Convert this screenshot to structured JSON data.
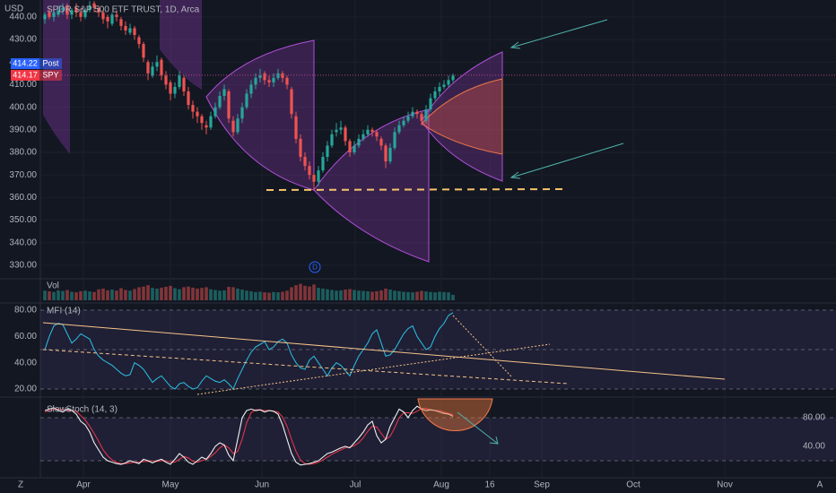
{
  "chart_data": {
    "type": "candlestick",
    "title": "SPDR S&P 500 ETF TRUST, 1D, Arca",
    "currency": "USD",
    "up_color": "#26a69a",
    "down_color": "#ef5350",
    "xlim": [
      -10,
      166
    ],
    "xticks": [
      {
        "value": 8.6,
        "label": "Apr"
      },
      {
        "value": 28,
        "label": "May"
      },
      {
        "value": 48.4,
        "label": "Jun"
      },
      {
        "value": 69.2,
        "label": "Jul"
      },
      {
        "value": 88.4,
        "label": "Aug"
      },
      {
        "value": 99.2,
        "label": "16"
      },
      {
        "value": 110.8,
        "label": "Sep"
      },
      {
        "value": 131.2,
        "label": "Oct"
      },
      {
        "value": 151.6,
        "label": "Nov"
      }
    ],
    "ylim": [
      324.4,
      447.5
    ],
    "yticks": [
      {
        "value": 440,
        "label": "440.00"
      },
      {
        "value": 430,
        "label": "430.00"
      },
      {
        "value": 420,
        "label": "420.00"
      },
      {
        "value": 410,
        "label": "410.00"
      },
      {
        "value": 400,
        "label": "400.00"
      },
      {
        "value": 390,
        "label": "390.00"
      },
      {
        "value": 380,
        "label": "380.00"
      },
      {
        "value": 370,
        "label": "370.00"
      },
      {
        "value": 360,
        "label": "360.00"
      },
      {
        "value": 350,
        "label": "350.00"
      },
      {
        "value": 340,
        "label": "340.00"
      },
      {
        "value": 330,
        "label": "330.00"
      }
    ],
    "candles": [
      [
        439,
        442,
        437,
        441
      ],
      [
        442,
        444,
        439,
        440
      ],
      [
        440,
        443,
        438,
        442
      ],
      [
        441,
        445,
        440,
        443
      ],
      [
        443,
        446,
        441,
        444
      ],
      [
        445,
        446,
        439,
        441
      ],
      [
        441,
        444,
        439,
        443
      ],
      [
        444,
        446,
        440,
        442
      ],
      [
        442,
        444,
        438,
        440
      ],
      [
        440,
        444,
        439,
        443
      ],
      [
        443,
        447,
        442,
        445
      ],
      [
        446,
        447,
        442,
        444
      ],
      [
        444,
        445,
        440,
        442
      ],
      [
        442,
        443,
        437,
        439
      ],
      [
        440,
        441,
        435,
        438
      ],
      [
        437,
        442,
        436,
        441
      ],
      [
        441,
        443,
        438,
        440
      ],
      [
        439,
        440,
        434,
        436
      ],
      [
        436,
        438,
        432,
        434
      ],
      [
        433,
        437,
        432,
        435
      ],
      [
        435,
        436,
        430,
        432
      ],
      [
        431,
        432,
        426,
        428
      ],
      [
        428,
        429,
        420,
        422
      ],
      [
        420,
        421,
        412,
        415
      ],
      [
        414,
        420,
        413,
        418
      ],
      [
        418,
        423,
        416,
        420
      ],
      [
        421,
        422,
        412,
        414
      ],
      [
        414,
        416,
        408,
        410
      ],
      [
        411,
        412,
        403,
        406
      ],
      [
        406,
        411,
        404,
        409
      ],
      [
        409,
        416,
        408,
        414
      ],
      [
        413,
        414,
        405,
        407
      ],
      [
        407,
        409,
        399,
        401
      ],
      [
        401,
        403,
        395,
        398
      ],
      [
        398,
        400,
        393,
        396
      ],
      [
        396,
        397,
        390,
        393
      ],
      [
        392,
        394,
        388,
        391
      ],
      [
        391,
        398,
        390,
        396
      ],
      [
        396,
        402,
        395,
        400
      ],
      [
        400,
        407,
        399,
        405
      ],
      [
        405,
        410,
        403,
        408
      ],
      [
        407,
        408,
        393,
        395
      ],
      [
        394,
        396,
        387,
        389
      ],
      [
        389,
        397,
        388,
        395
      ],
      [
        395,
        402,
        393,
        400
      ],
      [
        400,
        408,
        399,
        406
      ],
      [
        406,
        412,
        404,
        410
      ],
      [
        410,
        415,
        408,
        413
      ],
      [
        413,
        417,
        411,
        414
      ],
      [
        415,
        416,
        410,
        412
      ],
      [
        412,
        414,
        409,
        411
      ],
      [
        411,
        415,
        409,
        413
      ],
      [
        413,
        417,
        412,
        415
      ],
      [
        415,
        416,
        411,
        413
      ],
      [
        413,
        414,
        408,
        410
      ],
      [
        408,
        409,
        395,
        397
      ],
      [
        396,
        398,
        384,
        386
      ],
      [
        386,
        388,
        376,
        378
      ],
      [
        378,
        380,
        372,
        374
      ],
      [
        374,
        376,
        368,
        370
      ],
      [
        370,
        371,
        363,
        367
      ],
      [
        367,
        374,
        365,
        372
      ],
      [
        372,
        380,
        371,
        378
      ],
      [
        378,
        385,
        376,
        383
      ],
      [
        383,
        390,
        382,
        388
      ],
      [
        389,
        393,
        387,
        390
      ],
      [
        390,
        394,
        388,
        391
      ],
      [
        391,
        392,
        383,
        385
      ],
      [
        385,
        386,
        378,
        380
      ],
      [
        380,
        385,
        379,
        383
      ],
      [
        383,
        388,
        382,
        386
      ],
      [
        386,
        390,
        385,
        388
      ],
      [
        388,
        392,
        387,
        390
      ],
      [
        390,
        391,
        387,
        389
      ],
      [
        389,
        390,
        385,
        387
      ],
      [
        386,
        387,
        381,
        383
      ],
      [
        383,
        384,
        373,
        376
      ],
      [
        376,
        384,
        375,
        382
      ],
      [
        382,
        391,
        381,
        389
      ],
      [
        389,
        394,
        388,
        392
      ],
      [
        392,
        396,
        391,
        394
      ],
      [
        394,
        398,
        393,
        396
      ],
      [
        396,
        400,
        395,
        398
      ],
      [
        398,
        399,
        395,
        397
      ],
      [
        397,
        398,
        392,
        394
      ],
      [
        394,
        401,
        393,
        399
      ],
      [
        399,
        406,
        398,
        404
      ],
      [
        404,
        409,
        403,
        407
      ],
      [
        407,
        411,
        405,
        409
      ],
      [
        409,
        412,
        408,
        410
      ],
      [
        410,
        414,
        409,
        412
      ],
      [
        412,
        415,
        411,
        414
      ]
    ],
    "price_labels": [
      {
        "value": 414.22,
        "tag": "Post",
        "color": "#2962ff"
      },
      {
        "value": 414.17,
        "tag": "SPY",
        "color": "#f23645"
      }
    ],
    "event_marker": "D",
    "volume": {
      "label": "Vol",
      "ylim": [
        0,
        150
      ],
      "values": [
        70,
        65,
        60,
        72,
        68,
        75,
        62,
        58,
        66,
        70,
        64,
        60,
        80,
        85,
        72,
        78,
        70,
        88,
        75,
        70,
        82,
        95,
        100,
        110,
        90,
        85,
        92,
        98,
        105,
        88,
        80,
        95,
        100,
        92,
        85,
        90,
        95,
        80,
        75,
        70,
        72,
        98,
        95,
        85,
        78,
        70,
        65,
        60,
        62,
        58,
        55,
        60,
        58,
        62,
        70,
        95,
        110,
        120,
        105,
        100,
        115,
        90,
        85,
        80,
        75,
        70,
        72,
        78,
        82,
        75,
        70,
        68,
        65,
        62,
        66,
        72,
        85,
        78,
        70,
        66,
        62,
        60,
        58,
        62,
        68,
        64,
        60,
        58,
        62,
        60,
        58,
        40
      ]
    },
    "mfi": {
      "label": "MFI (14)",
      "color": "#2bb6d8",
      "ylim": [
        15.9,
        84.1
      ],
      "yticks": [
        {
          "value": 80,
          "label": "80.00"
        },
        {
          "value": 60,
          "label": "60.00"
        },
        {
          "value": 40,
          "label": "40.00"
        },
        {
          "value": 20,
          "label": "20.00"
        }
      ],
      "bands": [
        80,
        50,
        20
      ],
      "values": [
        50,
        60,
        68,
        70,
        69,
        62,
        55,
        58,
        62,
        60,
        58,
        50,
        45,
        42,
        40,
        38,
        35,
        32,
        30,
        31,
        40,
        38,
        35,
        30,
        25,
        28,
        30,
        26,
        22,
        20,
        24,
        25,
        22,
        20,
        21,
        26,
        30,
        28,
        26,
        25,
        27,
        24,
        20,
        28,
        35,
        42,
        48,
        52,
        54,
        56,
        50,
        52,
        56,
        58,
        55,
        46,
        40,
        36,
        35,
        42,
        45,
        40,
        35,
        30,
        36,
        40,
        38,
        34,
        30,
        38,
        45,
        50,
        55,
        62,
        65,
        55,
        45,
        46,
        50,
        56,
        62,
        66,
        68,
        60,
        55,
        50,
        52,
        60,
        66,
        70,
        76,
        78
      ]
    },
    "stoch": {
      "label": "SlowStoch (14, 3)",
      "k_color": "#f0f0f0",
      "d_color": "#e0344a",
      "ylim": [
        -6.25,
        106.25
      ],
      "yticks": [
        {
          "value": 80,
          "label": "80.00"
        },
        {
          "value": 40,
          "label": "40.00"
        }
      ],
      "bands": [
        80,
        20
      ],
      "k": [
        90,
        92,
        94,
        90,
        88,
        92,
        90,
        85,
        75,
        70,
        60,
        45,
        35,
        25,
        20,
        18,
        16,
        15,
        17,
        20,
        18,
        16,
        22,
        20,
        17,
        20,
        22,
        18,
        15,
        22,
        30,
        25,
        18,
        15,
        20,
        25,
        22,
        30,
        40,
        45,
        42,
        28,
        20,
        50,
        80,
        90,
        92,
        90,
        91,
        88,
        90,
        89,
        85,
        70,
        50,
        30,
        18,
        14,
        15,
        16,
        18,
        20,
        25,
        30,
        32,
        35,
        38,
        40,
        38,
        45,
        52,
        60,
        70,
        75,
        55,
        45,
        50,
        68,
        80,
        92,
        88,
        80,
        90,
        96,
        92,
        90,
        91,
        90,
        88,
        86,
        85,
        82
      ],
      "d": [
        88,
        90,
        92,
        92,
        91,
        90,
        90,
        89,
        83,
        77,
        68,
        58,
        47,
        35,
        27,
        21,
        18,
        16,
        16,
        17,
        18,
        18,
        19,
        19,
        20,
        19,
        20,
        20,
        18,
        18,
        22,
        26,
        24,
        19,
        18,
        20,
        22,
        26,
        31,
        38,
        42,
        38,
        30,
        33,
        50,
        73,
        87,
        91,
        91,
        90,
        90,
        89,
        88,
        81,
        68,
        50,
        33,
        21,
        16,
        15,
        16,
        18,
        21,
        25,
        29,
        32,
        35,
        38,
        39,
        41,
        45,
        52,
        61,
        68,
        67,
        58,
        50,
        54,
        66,
        80,
        87,
        87,
        86,
        89,
        93,
        93,
        91,
        90,
        90,
        88,
        86,
        84
      ]
    }
  },
  "ui": {
    "corner_left": "Z",
    "corner_right": "A"
  }
}
